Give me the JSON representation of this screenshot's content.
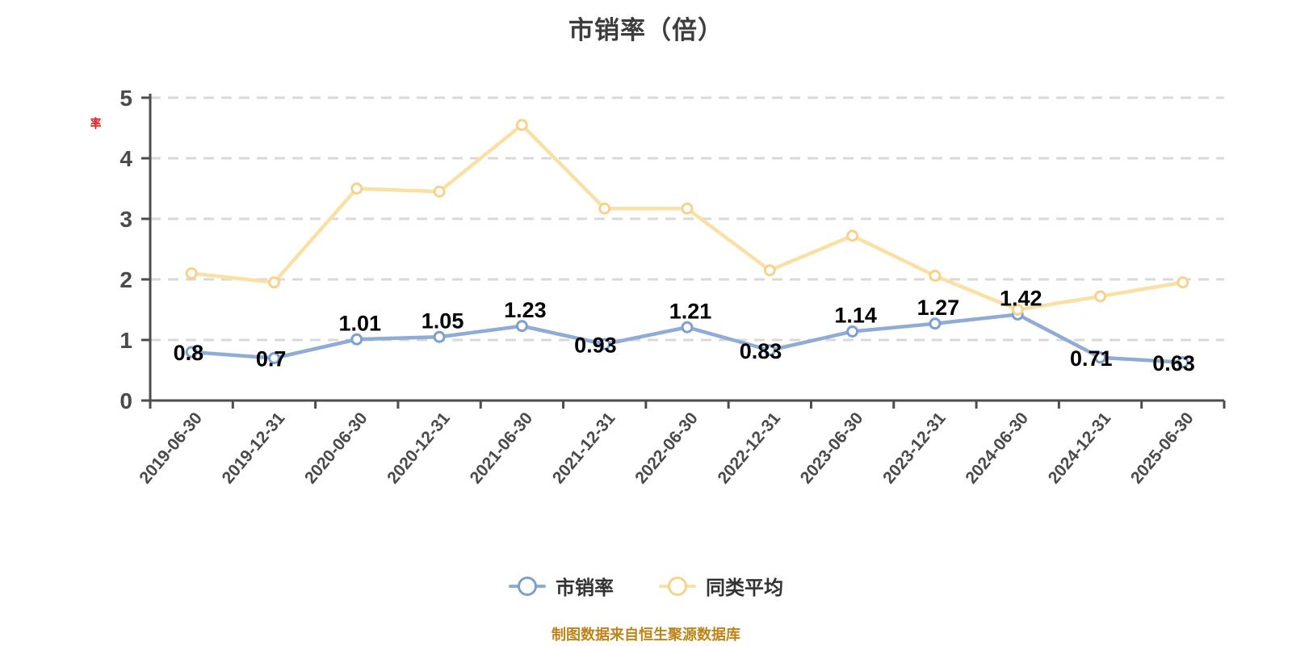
{
  "title": "市销率（倍）",
  "y_unit_label": "率",
  "source_note": "制图数据来自恒生聚源数据库",
  "colors": {
    "series_psr": "#8fabd6",
    "series_psr_marker": "#7da0d2",
    "series_avg": "#fae0a4",
    "series_avg_marker": "#f6d28c",
    "axis": "#4d4d4d",
    "tick_label": "#4a4a4a",
    "gridline": "#d9d9d9",
    "data_label": "#000000",
    "title_color": "#3d3d3d",
    "unit_label_red": "#e01f1f",
    "source_orange": "#bd8419"
  },
  "legend": {
    "items": [
      {
        "label": "市销率"
      },
      {
        "label": "同类平均"
      }
    ]
  },
  "chart_data": {
    "type": "line",
    "title": "市销率（倍）",
    "xlabel": "",
    "ylabel": "率",
    "ylim": [
      0,
      5
    ],
    "yticks": [
      0,
      1,
      2,
      3,
      4,
      5
    ],
    "grid": "horizontal-dashed",
    "legend_position": "bottom",
    "categories": [
      "2019-06-30",
      "2019-12-31",
      "2020-06-30",
      "2020-12-31",
      "2021-06-30",
      "2021-12-31",
      "2022-06-30",
      "2022-12-31",
      "2023-06-30",
      "2023-12-31",
      "2024-06-30",
      "2024-12-31",
      "2025-06-30"
    ],
    "series": [
      {
        "name": "市销率",
        "values": [
          0.8,
          0.7,
          1.01,
          1.05,
          1.23,
          0.93,
          1.21,
          0.83,
          1.14,
          1.27,
          1.42,
          0.71,
          0.63
        ],
        "labels_shown": true,
        "label_sides": [
          "left",
          "left",
          "above",
          "above",
          "above",
          "left",
          "above",
          "left",
          "above",
          "above",
          "above",
          "left",
          "left"
        ]
      },
      {
        "name": "同类平均",
        "values": [
          2.1,
          1.95,
          3.5,
          3.45,
          4.55,
          3.17,
          3.17,
          2.15,
          2.72,
          2.06,
          1.5,
          1.72,
          1.95
        ],
        "labels_shown": false
      }
    ]
  }
}
